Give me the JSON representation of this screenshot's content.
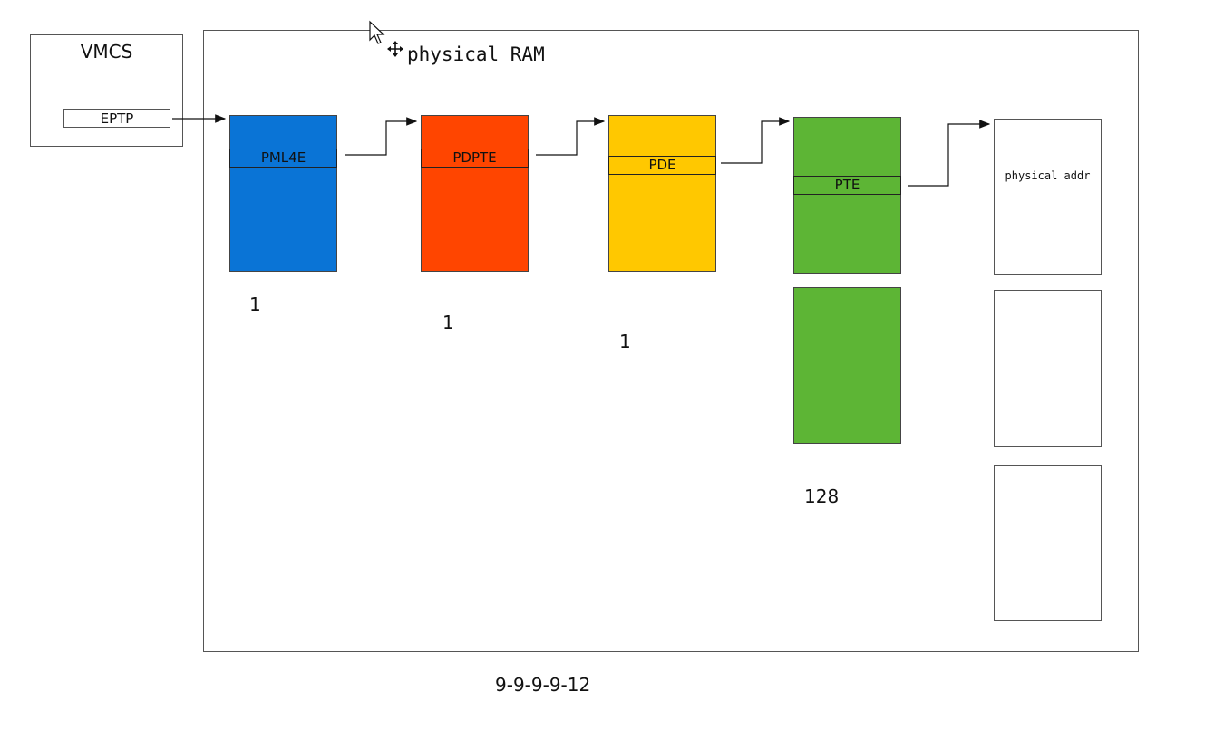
{
  "vmcs": {
    "title": "VMCS",
    "field": "EPTP"
  },
  "ram": {
    "title": "physical RAM"
  },
  "tables": [
    {
      "entry": "PML4E",
      "count": "1",
      "color": "#0a74d6"
    },
    {
      "entry": "PDPTE",
      "count": "1",
      "color": "#ff4500"
    },
    {
      "entry": "PDE",
      "count": "1",
      "color": "#ffc800"
    },
    {
      "entry": "PTE",
      "count": "128",
      "color": "#5db535"
    }
  ],
  "physical": {
    "label": "physical addr"
  },
  "footer": "9-9-9-9-12",
  "icons": [
    "mouse-pointer-icon",
    "move-cursor-icon"
  ]
}
